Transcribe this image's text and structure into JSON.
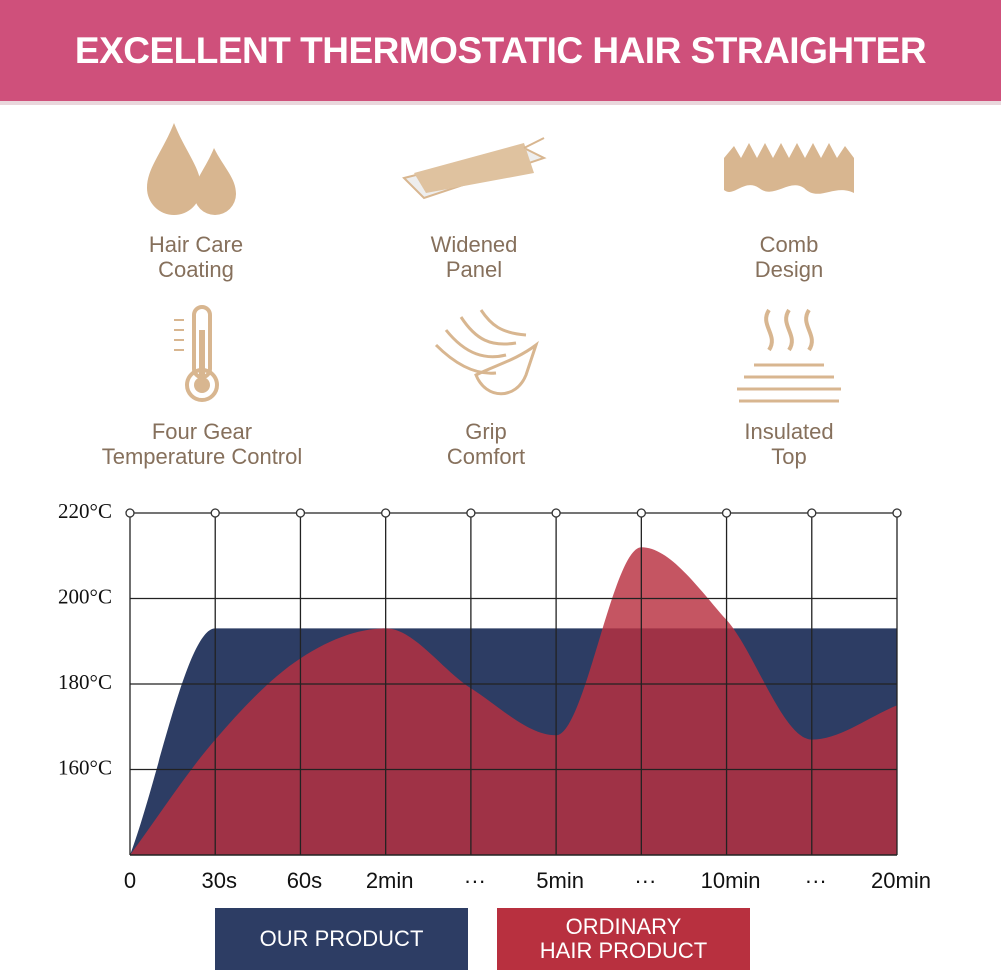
{
  "header": {
    "title": "EXCELLENT THERMOSTATIC HAIR STRAIGHTER"
  },
  "features": [
    {
      "lines": [
        "Hair Care",
        "Coating"
      ]
    },
    {
      "lines": [
        "Widened",
        "Panel"
      ]
    },
    {
      "lines": [
        "Comb",
        "Design"
      ]
    },
    {
      "lines": [
        "Four Gear",
        "Temperature Control"
      ]
    },
    {
      "lines": [
        "Grip",
        "Comfort"
      ]
    },
    {
      "lines": [
        "Insulated",
        "Top"
      ]
    }
  ],
  "chart_data": {
    "type": "area",
    "categories": [
      "0",
      "30s",
      "60s",
      "2min",
      "···",
      "5min",
      "···",
      "10min",
      "···",
      "20min"
    ],
    "series": [
      {
        "name": "OUR PRODUCT",
        "color": "#2d3d64",
        "values": [
          140,
          193,
          193,
          193,
          193,
          193,
          193,
          193,
          193,
          193
        ]
      },
      {
        "name": "ORDINARY HAIR PRODUCT",
        "color": "#b8303f",
        "values": [
          140,
          167,
          186,
          193,
          179,
          168,
          212,
          195,
          167,
          175
        ]
      }
    ],
    "ylim": [
      140,
      220
    ],
    "yticks": [
      {
        "value": 160,
        "label": "160°C"
      },
      {
        "value": 180,
        "label": "180°C"
      },
      {
        "value": 200,
        "label": "200°C"
      },
      {
        "value": 220,
        "label": "220°C"
      }
    ],
    "grid": true
  }
}
